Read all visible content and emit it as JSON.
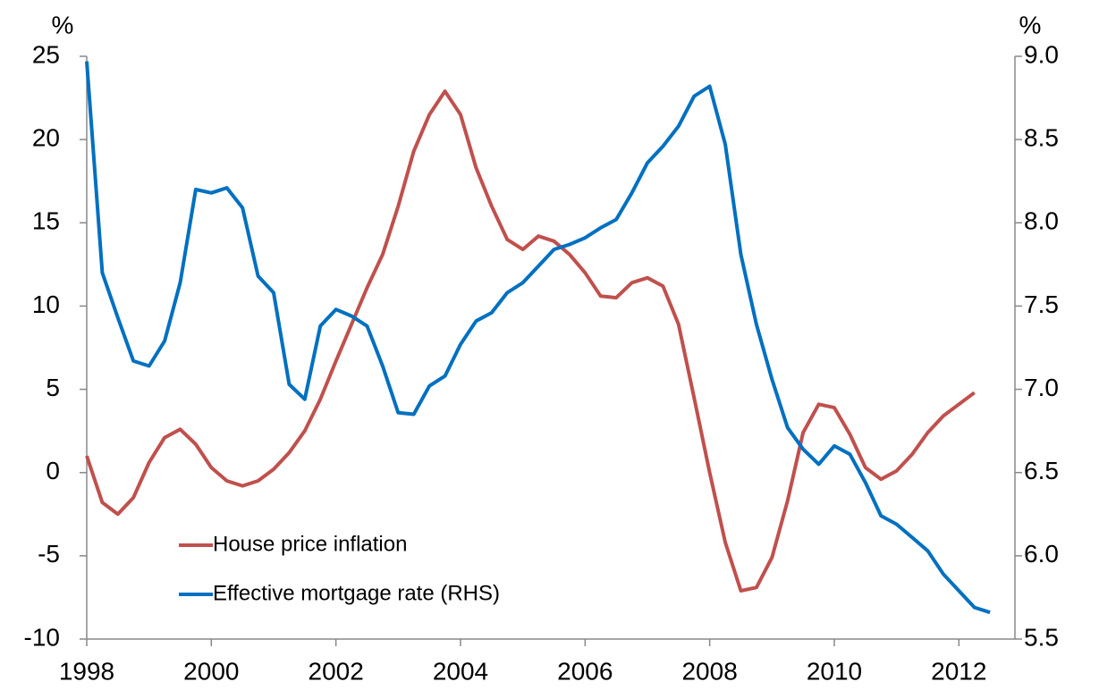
{
  "chart_data": {
    "type": "line",
    "y_label": "%",
    "y2_label": "%",
    "x": [
      1998,
      1998.25,
      1998.5,
      1998.75,
      1999,
      1999.25,
      1999.5,
      1999.75,
      2000,
      2000.25,
      2000.5,
      2000.75,
      2001,
      2001.25,
      2001.5,
      2001.75,
      2002,
      2002.25,
      2002.5,
      2002.75,
      2003,
      2003.25,
      2003.5,
      2003.75,
      2004,
      2004.25,
      2004.5,
      2004.75,
      2005,
      2005.25,
      2005.5,
      2005.75,
      2006,
      2006.25,
      2006.5,
      2006.75,
      2007,
      2007.25,
      2007.5,
      2007.75,
      2008,
      2008.25,
      2008.5,
      2008.75,
      2009,
      2009.25,
      2009.5,
      2009.75,
      2010,
      2010.25,
      2010.5,
      2010.75,
      2011,
      2011.25,
      2011.5,
      2011.75,
      2012,
      2012.25,
      2012.5
    ],
    "series": [
      {
        "name": "House price inflation",
        "color": "#c0504d",
        "axis": "y",
        "values": [
          1.0,
          -1.8,
          -2.5,
          -1.5,
          0.6,
          2.1,
          2.6,
          1.7,
          0.3,
          -0.5,
          -0.8,
          -0.5,
          0.2,
          1.2,
          2.5,
          4.4,
          6.7,
          8.9,
          11.1,
          13.1,
          16.0,
          19.3,
          21.5,
          22.9,
          21.5,
          18.3,
          16.0,
          14.0,
          13.4,
          14.2,
          13.9,
          13.1,
          12.0,
          10.6,
          10.5,
          11.4,
          11.7,
          11.2,
          8.9,
          4.5,
          0.0,
          -4.2,
          -7.1,
          -6.9,
          -5.1,
          -1.7,
          2.4,
          4.1,
          3.9,
          2.3,
          0.3,
          -0.4,
          0.1,
          1.1,
          2.4,
          3.4,
          4.1,
          4.8,
          null
        ]
      },
      {
        "name": "Effective mortgage rate (RHS)",
        "color": "#0070c0",
        "axis": "y2",
        "values": [
          8.97,
          7.7,
          7.43,
          7.17,
          7.14,
          7.29,
          7.64,
          8.2,
          8.18,
          8.21,
          8.09,
          7.68,
          7.58,
          7.03,
          6.94,
          7.38,
          7.48,
          7.44,
          7.38,
          7.14,
          6.86,
          6.85,
          7.02,
          7.08,
          7.27,
          7.41,
          7.46,
          7.58,
          7.64,
          7.74,
          7.84,
          7.87,
          7.91,
          7.97,
          8.02,
          8.18,
          8.36,
          8.46,
          8.58,
          8.76,
          8.82,
          8.47,
          7.81,
          7.39,
          7.06,
          6.77,
          6.64,
          6.55,
          6.66,
          6.61,
          6.44,
          6.24,
          6.19,
          6.11,
          6.03,
          5.89,
          5.79,
          5.69,
          5.66
        ]
      }
    ],
    "xlim": [
      1998,
      2012.9
    ],
    "xticks": [
      1998,
      2000,
      2002,
      2004,
      2006,
      2008,
      2010,
      2012
    ],
    "ylim": [
      -10,
      25
    ],
    "yticks": [
      -10,
      -5,
      0,
      5,
      10,
      15,
      20,
      25
    ],
    "y2lim": [
      5.5,
      9.0
    ],
    "y2ticks": [
      {
        "value": 5.5,
        "label": "5.5"
      },
      {
        "value": 6.0,
        "label": "6.0"
      },
      {
        "value": 6.5,
        "label": "6.5"
      },
      {
        "value": 7.0,
        "label": "7.0"
      },
      {
        "value": 7.5,
        "label": "7.5"
      },
      {
        "value": 8.0,
        "label": "8.0"
      },
      {
        "value": 8.5,
        "label": "8.5"
      },
      {
        "value": 9.0,
        "label": "9.0"
      }
    ],
    "legend": "lower left"
  }
}
